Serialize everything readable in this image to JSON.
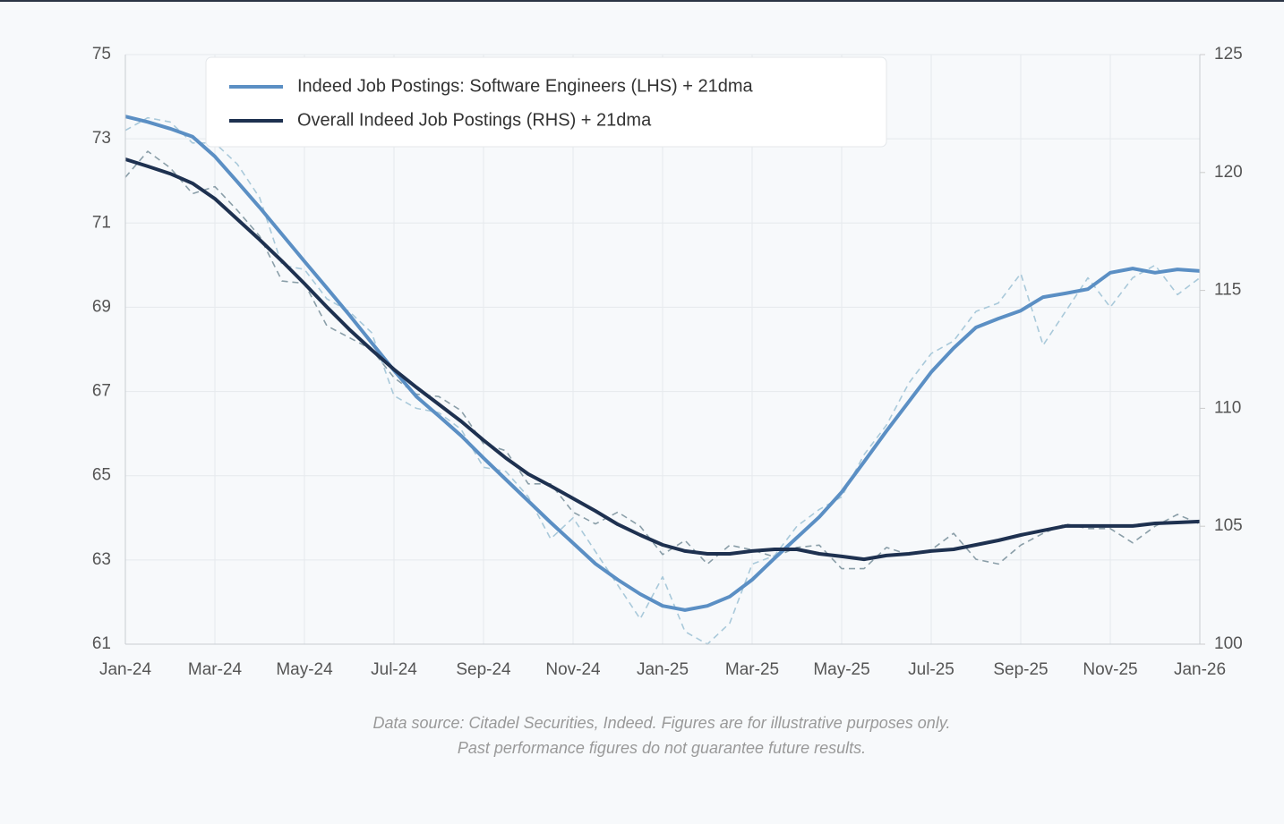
{
  "chart_data": {
    "type": "line",
    "categories": [
      "Jan-24",
      null,
      null,
      null,
      "Mar-24",
      null,
      null,
      null,
      "May-24",
      null,
      null,
      null,
      "Jul-24",
      null,
      null,
      null,
      "Sep-24",
      null,
      null,
      null,
      "Nov-24",
      null,
      null,
      null,
      "Jan-25",
      null,
      null,
      null,
      "Mar-25",
      null,
      null,
      null,
      "May-25",
      null,
      null,
      null,
      "Jul-25",
      null,
      null,
      null,
      "Sep-25",
      null,
      null,
      null,
      "Nov-25",
      null,
      null,
      null,
      "Jan-26"
    ],
    "series": [
      {
        "name": "Indeed Job Postings: Software Engineers (LHS) + 21dma",
        "color": "#5b8fc4",
        "axis": "y",
        "values": [
          73.53,
          73.4,
          73.24,
          73.05,
          72.58,
          71.98,
          71.37,
          70.73,
          70.09,
          69.46,
          68.82,
          68.16,
          67.5,
          66.88,
          66.42,
          65.95,
          65.42,
          64.91,
          64.4,
          63.89,
          63.4,
          62.91,
          62.53,
          62.19,
          61.91,
          61.81,
          61.91,
          62.13,
          62.53,
          63.04,
          63.53,
          64.02,
          64.61,
          65.33,
          66.06,
          66.76,
          67.46,
          68.03,
          68.52,
          68.73,
          68.92,
          69.24,
          69.33,
          69.43,
          69.82,
          69.92,
          69.82,
          69.9,
          69.86
        ]
      },
      {
        "name": "Overall Indeed Job Postings (RHS) + 21dma",
        "color": "#1e3150",
        "axis": "y2",
        "values": [
          120.56,
          120.26,
          119.95,
          119.54,
          118.89,
          118.02,
          117.15,
          116.24,
          115.29,
          114.3,
          113.35,
          112.48,
          111.65,
          110.89,
          110.17,
          109.45,
          108.65,
          107.89,
          107.21,
          106.71,
          106.18,
          105.65,
          105.08,
          104.63,
          104.21,
          103.95,
          103.83,
          103.83,
          103.95,
          104.02,
          104.02,
          103.83,
          103.72,
          103.6,
          103.76,
          103.83,
          103.95,
          104.02,
          104.21,
          104.4,
          104.63,
          104.82,
          105.01,
          105.01,
          105.01,
          105.01,
          105.12,
          105.16,
          105.2
        ]
      },
      {
        "color": "#a9c9da",
        "axis": "y",
        "dashed": true,
        "values": [
          73.2,
          73.5,
          73.4,
          72.9,
          72.9,
          72.4,
          71.6,
          70.0,
          69.9,
          69.2,
          68.9,
          68.4,
          66.9,
          66.6,
          66.5,
          66.1,
          65.2,
          65.1,
          64.5,
          63.5,
          64.0,
          63.2,
          62.4,
          61.6,
          62.6,
          61.3,
          61.0,
          61.5,
          62.9,
          63.1,
          63.8,
          64.2,
          64.5,
          65.5,
          66.2,
          67.2,
          67.9,
          68.2,
          68.9,
          69.1,
          69.8,
          68.1,
          68.9,
          69.7,
          69.0,
          69.7,
          70.0,
          69.3,
          69.7
        ]
      },
      {
        "color": "#8a9ea8",
        "axis": "y2",
        "dashed": true,
        "values": [
          119.8,
          120.9,
          120.2,
          119.1,
          119.4,
          118.4,
          117.3,
          115.4,
          115.3,
          113.5,
          113.0,
          112.5,
          111.3,
          110.6,
          110.5,
          109.9,
          108.5,
          108.2,
          106.8,
          106.8,
          105.6,
          105.1,
          105.6,
          105.0,
          103.8,
          104.4,
          103.4,
          104.2,
          104.0,
          103.7,
          104.1,
          104.2,
          103.2,
          103.2,
          104.1,
          103.8,
          104.0,
          104.7,
          103.6,
          103.4,
          104.2,
          104.7,
          105.1,
          104.9,
          104.9,
          104.3,
          105.0,
          105.5,
          105.1
        ]
      }
    ],
    "ylim": [
      61,
      75
    ],
    "yticks": [
      61,
      63,
      65,
      67,
      69,
      71,
      73,
      75
    ],
    "y2lim": [
      100,
      125
    ],
    "y2ticks": [
      100,
      105,
      110,
      115,
      120,
      125
    ],
    "grid": true,
    "legend": "top-left",
    "notes": [
      "Data source: Citadel Securities, Indeed. Figures are for illustrative purposes only.",
      "Past performance figures do not guarantee future results."
    ]
  }
}
